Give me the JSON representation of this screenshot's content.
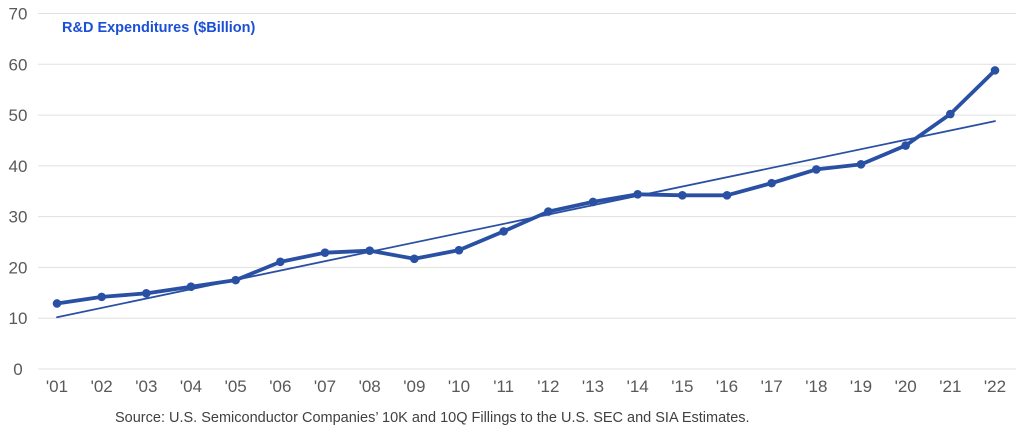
{
  "chart_data": {
    "type": "line",
    "title": "R&D Expenditures ($Billion)",
    "source_note": "Source: U.S. Semiconductor Companies’ 10K and 10Q Fillings to the U.S. SEC and SIA Estimates.",
    "categories": [
      "'01",
      "'02",
      "'03",
      "'04",
      "'05",
      "'06",
      "'07",
      "'08",
      "'09",
      "'10",
      "'11",
      "'12",
      "'13",
      "'14",
      "'15",
      "'16",
      "'17",
      "'18",
      "'19",
      "'20",
      "'21",
      "'22"
    ],
    "series": [
      {
        "name": "R&D Expenditures",
        "style": "data",
        "values": [
          12.9,
          14.2,
          14.9,
          16.2,
          17.5,
          21.1,
          22.9,
          23.3,
          21.7,
          23.4,
          27.1,
          31.0,
          32.9,
          34.4,
          34.2,
          34.2,
          36.6,
          39.3,
          40.3,
          44.0,
          50.2,
          58.8
        ]
      },
      {
        "name": "Linear trend",
        "style": "trend",
        "endpoints": [
          10.2,
          48.8
        ]
      }
    ],
    "xlabel": "",
    "ylabel": "",
    "ylim": [
      0,
      70
    ],
    "yticks": [
      0,
      10,
      20,
      30,
      40,
      50,
      60,
      70
    ],
    "grid": "horizontal",
    "legend": "none",
    "colors": {
      "line": "#2A50A4",
      "marker": "#2A50A4",
      "trend": "#2A50A4",
      "title": "#1B4FD6",
      "axis_text": "#58595B",
      "source_text": "#414042",
      "gridline": "#E0E0E0"
    }
  }
}
